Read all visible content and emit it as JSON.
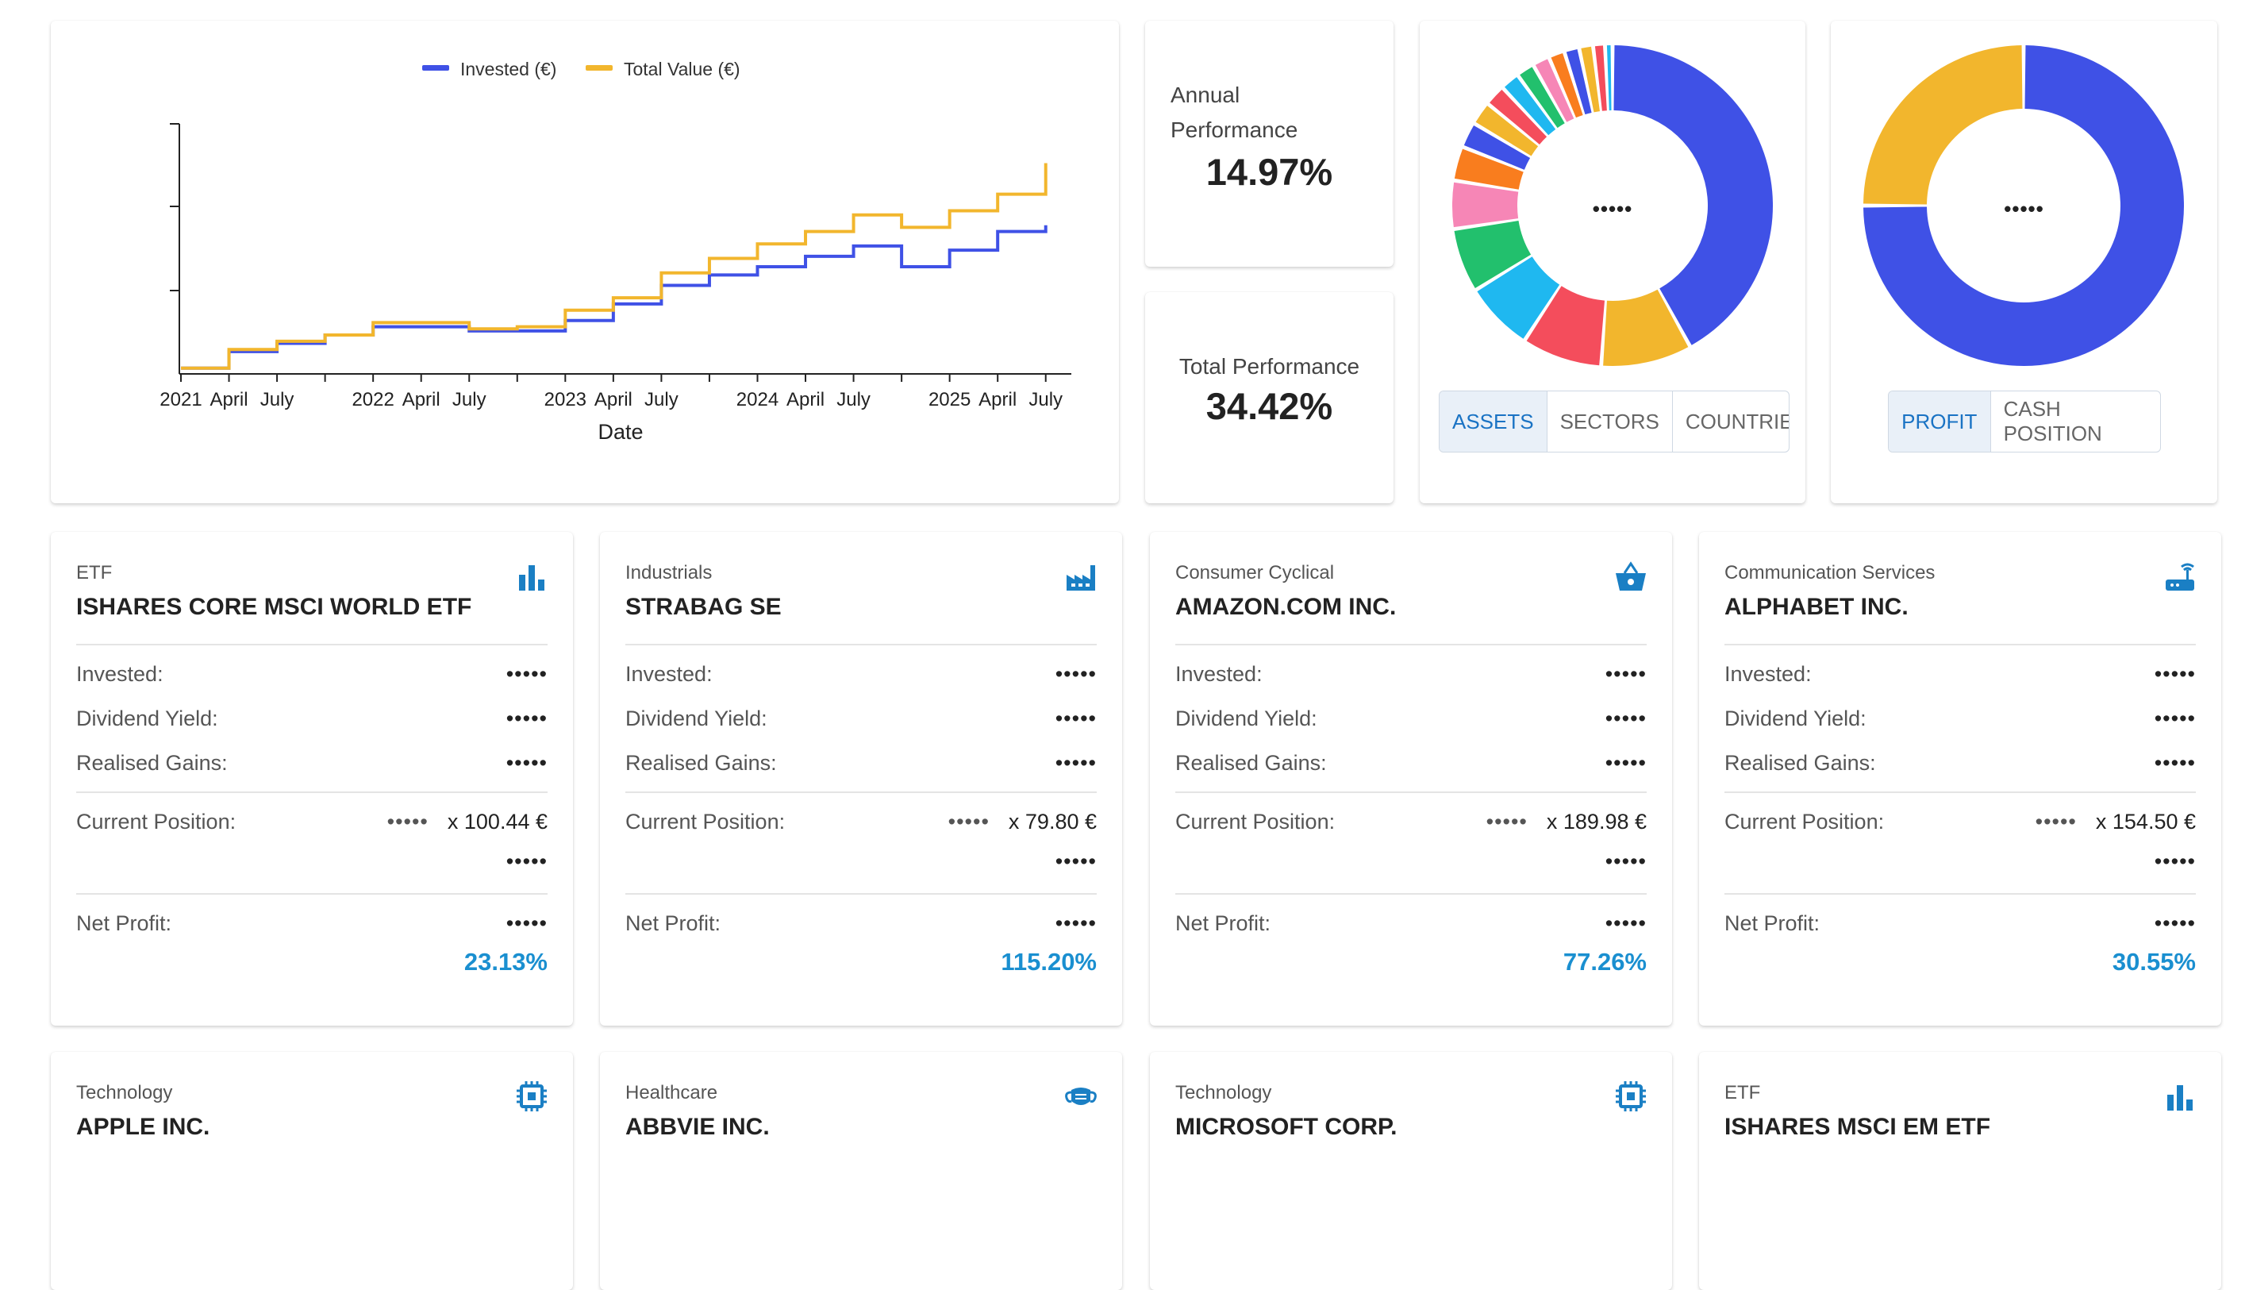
{
  "chart": {
    "legend": [
      {
        "label": "Invested (€)",
        "color": "#3f51e6"
      },
      {
        "label": "Total Value (€)",
        "color": "#f2b62d"
      }
    ],
    "x_ticks": [
      "2021",
      "April",
      "July",
      "2022",
      "April",
      "July",
      "2023",
      "April",
      "July",
      "2024",
      "April",
      "July",
      "2025",
      "April",
      "July"
    ],
    "xlabel": "Date"
  },
  "chart_data": {
    "type": "line",
    "title": "",
    "xlabel": "Date",
    "ylabel": "",
    "x": [
      "2021-01",
      "2021-04",
      "2021-07",
      "2021-10",
      "2022-01",
      "2022-04",
      "2022-07",
      "2022-10",
      "2023-01",
      "2023-04",
      "2023-07",
      "2023-10",
      "2024-01",
      "2024-04",
      "2024-07",
      "2024-10",
      "2025-01",
      "2025-04",
      "2025-07"
    ],
    "series": [
      {
        "name": "Invested (€)",
        "color": "#3f51e6",
        "values": [
          2,
          10,
          14,
          18,
          22,
          22,
          20,
          20,
          25,
          33,
          42,
          47,
          51,
          56,
          61,
          51,
          59,
          68,
          71
        ]
      },
      {
        "name": "Total Value (€)",
        "color": "#f2b62d",
        "values": [
          2,
          11,
          15,
          18,
          24,
          24,
          21,
          22,
          30,
          36,
          48,
          55,
          62,
          68,
          76,
          70,
          78,
          86,
          101
        ]
      }
    ],
    "ylim": [
      0,
      120
    ],
    "y_ticks_labeled": false,
    "grid": false
  },
  "kpis": {
    "annual_label": "Annual Performance",
    "annual_value": "14.97%",
    "total_label": "Total Performance",
    "total_value": "34.42%"
  },
  "donut_assets": {
    "center": "•••••",
    "buttons": [
      "ASSETS",
      "SECTORS",
      "COUNTRIES"
    ],
    "active": "ASSETS",
    "slices": [
      {
        "value": 39,
        "color": "#3f51e6"
      },
      {
        "value": 8.5,
        "color": "#f2b62d"
      },
      {
        "value": 7.5,
        "color": "#f44d5c"
      },
      {
        "value": 6.5,
        "color": "#1fb8f0"
      },
      {
        "value": 6,
        "color": "#22c06d"
      },
      {
        "value": 4.5,
        "color": "#f686b6"
      },
      {
        "value": 3.2,
        "color": "#f97d1e"
      },
      {
        "value": 2.4,
        "color": "#3f51e6"
      },
      {
        "value": 2.2,
        "color": "#f2b62d"
      },
      {
        "value": 2,
        "color": "#f44d5c"
      },
      {
        "value": 1.8,
        "color": "#1fb8f0"
      },
      {
        "value": 1.7,
        "color": "#22c06d"
      },
      {
        "value": 1.6,
        "color": "#f686b6"
      },
      {
        "value": 1.5,
        "color": "#f97d1e"
      },
      {
        "value": 1.4,
        "color": "#3f51e6"
      },
      {
        "value": 1.3,
        "color": "#f2b62d"
      },
      {
        "value": 1.1,
        "color": "#f44d5c"
      },
      {
        "value": 0.7,
        "color": "#1fb8f0"
      }
    ]
  },
  "donut_profit": {
    "center": "•••••",
    "buttons": [
      "PROFIT",
      "CASH POSITION"
    ],
    "active": "PROFIT",
    "slices": [
      {
        "value": 75,
        "color": "#3f51e6"
      },
      {
        "value": 25,
        "color": "#f2b62d"
      }
    ]
  },
  "labels": {
    "invested": "Invested:",
    "dividend": "Dividend Yield:",
    "realised": "Realised Gains:",
    "position": "Current Position:",
    "net_profit": "Net Profit:",
    "hidden": "•••••"
  },
  "holdings": [
    {
      "sector": "ETF",
      "name": "ISHARES CORE MSCI WORLD ETF",
      "icon": "bar-chart-icon",
      "price": "x 100.44 €",
      "net_pct": "23.13%"
    },
    {
      "sector": "Industrials",
      "name": "STRABAG SE",
      "icon": "factory-icon",
      "price": "x 79.80 €",
      "net_pct": "115.20%"
    },
    {
      "sector": "Consumer Cyclical",
      "name": "AMAZON.COM INC.",
      "icon": "basket-icon",
      "price": "x 189.98 €",
      "net_pct": "77.26%"
    },
    {
      "sector": "Communication Services",
      "name": "ALPHABET INC.",
      "icon": "router-icon",
      "price": "x 154.50 €",
      "net_pct": "30.55%"
    },
    {
      "sector": "Technology",
      "name": "APPLE INC.",
      "icon": "chip-icon"
    },
    {
      "sector": "Healthcare",
      "name": "ABBVIE INC.",
      "icon": "mask-icon"
    },
    {
      "sector": "Technology",
      "name": "MICROSOFT CORP.",
      "icon": "chip-icon"
    },
    {
      "sector": "ETF",
      "name": "ISHARES MSCI EM ETF",
      "icon": "bar-chart-icon"
    }
  ],
  "colors": {
    "accent": "#1a8fd0",
    "icon": "#1a7fc4"
  }
}
